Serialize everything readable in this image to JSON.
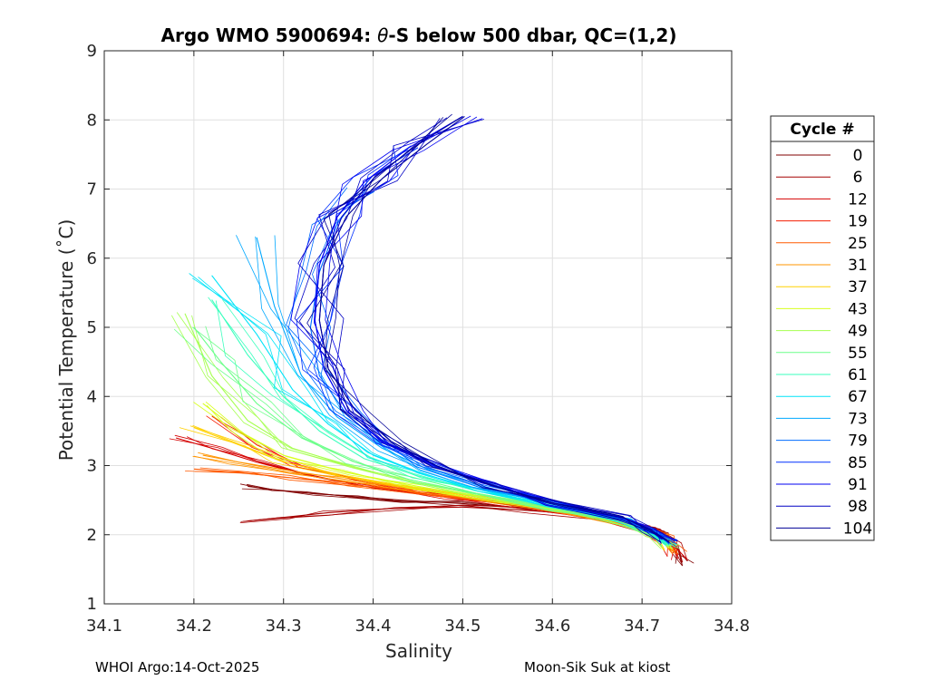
{
  "chart_data": {
    "type": "line",
    "title_prefix": "Argo WMO 5900694: ",
    "title_theta": "θ",
    "title_suffix": "-S below 500 dbar,  QC=(1,2)",
    "xlabel": "Salinity",
    "ylabel": "Potential Temperature (˚C)",
    "xlim": [
      34.1,
      34.8
    ],
    "ylim": [
      1,
      9
    ],
    "xticks": [
      34.1,
      34.2,
      34.3,
      34.4,
      34.5,
      34.6,
      34.7,
      34.8
    ],
    "xtick_labels": [
      "34.1",
      "34.2",
      "34.3",
      "34.4",
      "34.5",
      "34.6",
      "34.7",
      "34.8"
    ],
    "yticks": [
      1,
      2,
      3,
      4,
      5,
      6,
      7,
      8,
      9
    ],
    "ytick_labels": [
      "1",
      "2",
      "3",
      "4",
      "5",
      "6",
      "7",
      "8",
      "9"
    ],
    "grid": true,
    "legend": {
      "title": "Cycle #",
      "placement": "right",
      "entries": [
        {
          "label": "0",
          "color": "#800000"
        },
        {
          "label": "6",
          "color": "#a60000"
        },
        {
          "label": "12",
          "color": "#d40000"
        },
        {
          "label": "19",
          "color": "#f51d00"
        },
        {
          "label": "25",
          "color": "#ff5a00"
        },
        {
          "label": "31",
          "color": "#ff9400"
        },
        {
          "label": "37",
          "color": "#ffd000"
        },
        {
          "label": "43",
          "color": "#d8ff1f"
        },
        {
          "label": "49",
          "color": "#a6ff50"
        },
        {
          "label": "55",
          "color": "#6cff8a"
        },
        {
          "label": "61",
          "color": "#3affbd"
        },
        {
          "label": "67",
          "color": "#00e4f8"
        },
        {
          "label": "73",
          "color": "#00a8ff"
        },
        {
          "label": "79",
          "color": "#006cff"
        },
        {
          "label": "85",
          "color": "#0030ff"
        },
        {
          "label": "91",
          "color": "#0000f2"
        },
        {
          "label": "98",
          "color": "#0000c4"
        },
        {
          "label": "104",
          "color": "#000096"
        }
      ]
    },
    "series": [
      {
        "name": "0",
        "x": [
          34.745,
          34.74,
          34.72,
          34.68,
          34.6,
          34.5,
          34.43,
          34.38,
          34.33,
          34.29,
          34.26
        ],
        "y": [
          1.55,
          1.8,
          2.05,
          2.2,
          2.35,
          2.45,
          2.5,
          2.55,
          2.6,
          2.65,
          2.7
        ]
      },
      {
        "name": "6",
        "x": [
          34.745,
          34.74,
          34.72,
          34.66,
          34.58,
          34.5,
          34.42,
          34.35,
          34.3,
          34.26
        ],
        "y": [
          1.6,
          1.85,
          2.08,
          2.25,
          2.35,
          2.4,
          2.38,
          2.32,
          2.25,
          2.2
        ]
      },
      {
        "name": "12",
        "x": [
          34.74,
          34.73,
          34.7,
          34.64,
          34.56,
          34.48,
          34.4,
          34.33,
          34.27,
          34.22,
          34.18
        ],
        "y": [
          1.65,
          1.9,
          2.1,
          2.28,
          2.42,
          2.55,
          2.68,
          2.85,
          3.05,
          3.25,
          3.4
        ]
      },
      {
        "name": "19",
        "x": [
          34.74,
          34.73,
          34.7,
          34.63,
          34.55,
          34.47,
          34.39,
          34.32,
          34.27,
          34.23
        ],
        "y": [
          1.7,
          1.95,
          2.12,
          2.3,
          2.45,
          2.6,
          2.78,
          3.0,
          3.3,
          3.7
        ]
      },
      {
        "name": "25",
        "x": [
          34.74,
          34.73,
          34.7,
          34.63,
          34.55,
          34.46,
          34.38,
          34.31,
          34.25,
          34.2
        ],
        "y": [
          1.72,
          1.95,
          2.12,
          2.3,
          2.45,
          2.6,
          2.72,
          2.82,
          2.9,
          2.95
        ]
      },
      {
        "name": "31",
        "x": [
          34.735,
          34.72,
          34.69,
          34.62,
          34.54,
          34.46,
          34.38,
          34.31,
          34.25,
          34.21
        ],
        "y": [
          1.75,
          1.97,
          2.14,
          2.32,
          2.48,
          2.63,
          2.78,
          2.92,
          3.05,
          3.15
        ]
      },
      {
        "name": "37",
        "x": [
          34.735,
          34.72,
          34.69,
          34.62,
          34.54,
          34.45,
          34.37,
          34.3,
          34.25,
          34.2
        ],
        "y": [
          1.78,
          1.98,
          2.15,
          2.33,
          2.5,
          2.67,
          2.85,
          3.05,
          3.3,
          3.55
        ]
      },
      {
        "name": "43",
        "x": [
          34.73,
          34.72,
          34.69,
          34.61,
          34.53,
          34.45,
          34.37,
          34.3,
          34.25,
          34.21
        ],
        "y": [
          1.8,
          2.0,
          2.16,
          2.35,
          2.52,
          2.7,
          2.9,
          3.15,
          3.5,
          3.9
        ]
      },
      {
        "name": "49",
        "x": [
          34.73,
          34.71,
          34.68,
          34.61,
          34.53,
          34.45,
          34.38,
          34.31,
          34.26,
          34.22,
          34.19
        ],
        "y": [
          1.82,
          2.0,
          2.17,
          2.36,
          2.55,
          2.75,
          2.97,
          3.25,
          3.65,
          4.3,
          5.2
        ]
      },
      {
        "name": "55",
        "x": [
          34.73,
          34.71,
          34.68,
          34.6,
          34.52,
          34.44,
          34.38,
          34.32,
          34.27,
          34.23,
          34.2
        ],
        "y": [
          1.84,
          2.02,
          2.18,
          2.38,
          2.58,
          2.8,
          3.05,
          3.4,
          3.9,
          4.5,
          5.0
        ]
      },
      {
        "name": "61",
        "x": [
          34.73,
          34.71,
          34.68,
          34.6,
          34.52,
          34.45,
          34.39,
          34.34,
          34.3,
          34.26,
          34.22
        ],
        "y": [
          1.85,
          2.03,
          2.2,
          2.4,
          2.62,
          2.85,
          3.1,
          3.5,
          4.0,
          4.6,
          5.4
        ]
      },
      {
        "name": "67",
        "x": [
          34.73,
          34.71,
          34.68,
          34.6,
          34.52,
          34.45,
          34.4,
          34.35,
          34.31,
          34.27,
          34.22
        ],
        "y": [
          1.87,
          2.04,
          2.21,
          2.42,
          2.65,
          2.9,
          3.15,
          3.6,
          4.1,
          4.9,
          5.75
        ]
      },
      {
        "name": "73",
        "x": [
          34.73,
          34.71,
          34.68,
          34.6,
          34.52,
          34.46,
          34.41,
          34.36,
          34.32,
          34.29,
          34.27
        ],
        "y": [
          1.88,
          2.05,
          2.22,
          2.44,
          2.68,
          2.95,
          3.25,
          3.7,
          4.3,
          5.3,
          6.3
        ]
      },
      {
        "name": "79",
        "x": [
          34.73,
          34.71,
          34.68,
          34.6,
          34.52,
          34.46,
          34.41,
          34.37,
          34.34,
          34.33,
          34.34,
          34.36,
          34.39
        ],
        "y": [
          1.9,
          2.06,
          2.23,
          2.45,
          2.7,
          2.98,
          3.3,
          3.75,
          4.3,
          5.0,
          5.8,
          6.5,
          7.0
        ]
      },
      {
        "name": "85",
        "x": [
          34.73,
          34.71,
          34.68,
          34.6,
          34.53,
          34.47,
          34.41,
          34.37,
          34.345,
          34.335,
          34.34,
          34.36,
          34.4,
          34.45
        ],
        "y": [
          1.9,
          2.07,
          2.24,
          2.46,
          2.72,
          3.0,
          3.35,
          3.8,
          4.4,
          5.1,
          5.9,
          6.6,
          7.2,
          7.6
        ]
      },
      {
        "name": "91",
        "x": [
          34.73,
          34.71,
          34.68,
          34.6,
          34.53,
          34.47,
          34.41,
          34.37,
          34.345,
          34.335,
          34.34,
          34.36,
          34.39,
          34.44,
          34.5
        ],
        "y": [
          1.9,
          2.07,
          2.24,
          2.46,
          2.72,
          3.0,
          3.35,
          3.8,
          4.4,
          5.1,
          5.9,
          6.6,
          7.1,
          7.6,
          8.05
        ]
      },
      {
        "name": "98",
        "x": [
          34.73,
          34.71,
          34.68,
          34.6,
          34.53,
          34.47,
          34.42,
          34.38,
          34.35,
          34.34,
          34.345,
          34.365,
          34.4,
          34.45,
          34.5
        ],
        "y": [
          1.9,
          2.07,
          2.24,
          2.46,
          2.72,
          3.0,
          3.35,
          3.8,
          4.4,
          5.1,
          5.9,
          6.6,
          7.15,
          7.65,
          8.05
        ]
      },
      {
        "name": "104",
        "x": [
          34.73,
          34.71,
          34.68,
          34.6,
          34.53,
          34.47,
          34.42,
          34.38,
          34.35,
          34.34,
          34.345,
          34.37,
          34.41,
          34.46,
          34.502
        ],
        "y": [
          1.9,
          2.07,
          2.24,
          2.46,
          2.72,
          3.0,
          3.35,
          3.8,
          4.4,
          5.1,
          5.9,
          6.6,
          7.15,
          7.65,
          8.05
        ]
      }
    ]
  },
  "footer": {
    "left": "WHOI Argo:14-Oct-2025",
    "right": "Moon-Sik Suk at kiost"
  }
}
